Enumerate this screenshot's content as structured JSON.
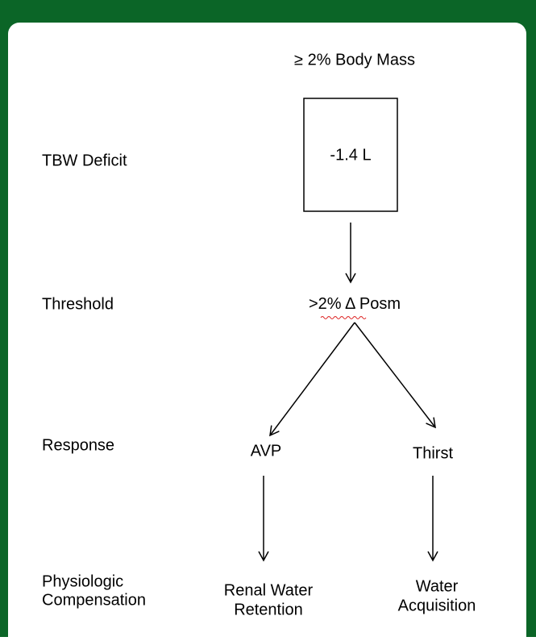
{
  "header": {
    "title": "≥ 2% Body Mass"
  },
  "rows": [
    {
      "label": [
        "TBW Deficit"
      ]
    },
    {
      "label": [
        "Threshold"
      ]
    },
    {
      "label": [
        "Response"
      ]
    },
    {
      "label": [
        "Physiologic",
        "Compensation"
      ]
    }
  ],
  "nodes": [
    {
      "label": [
        "-1.4 L"
      ]
    },
    {
      "label": [
        ">2% Δ ",
        "Posm"
      ]
    },
    {
      "label": [
        "AVP"
      ]
    },
    {
      "label": [
        "Thirst"
      ]
    },
    {
      "label": [
        "Renal Water",
        "Retention"
      ]
    },
    {
      "label": [
        "Water",
        "Acquisition"
      ]
    }
  ]
}
